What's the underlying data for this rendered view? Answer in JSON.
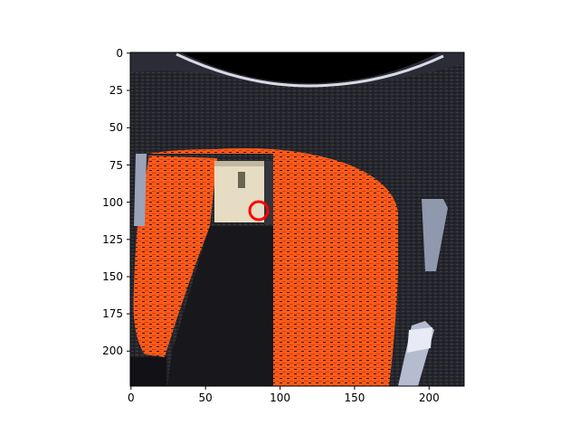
{
  "figure": {
    "axes": {
      "x_ticks": [
        "0",
        "50",
        "100",
        "150",
        "200"
      ],
      "y_ticks": [
        "0",
        "25",
        "50",
        "75",
        "100",
        "125",
        "150",
        "175",
        "200"
      ],
      "x_range": [
        0,
        224
      ],
      "y_range": [
        0,
        224
      ]
    },
    "image": {
      "description_icon": "camera-depth-view",
      "colors": {
        "background_dark": "#1f2026",
        "cushion_orange": "#ff5a1a",
        "box_beige": "#e6dcc3",
        "marker_red": "#ff0000"
      }
    },
    "marker": {
      "icon": "red-circle-marker",
      "x": 86,
      "y": 105
    }
  }
}
